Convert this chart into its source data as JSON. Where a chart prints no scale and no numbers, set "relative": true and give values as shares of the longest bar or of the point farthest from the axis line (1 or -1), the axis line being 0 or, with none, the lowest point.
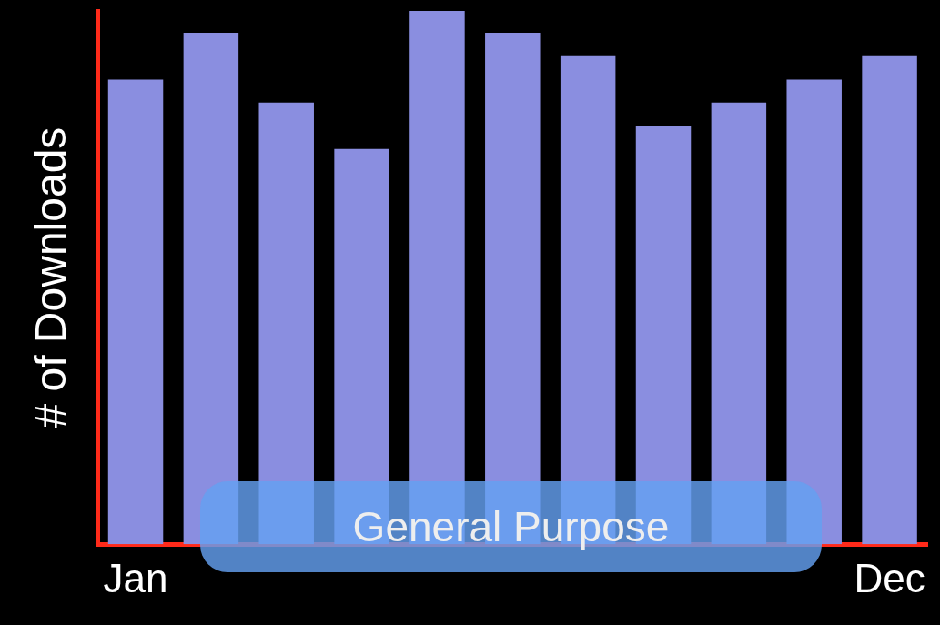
{
  "chart_data": {
    "type": "bar",
    "relative": true,
    "ylabel": "# of Downloads",
    "categories": [
      "Jan",
      null,
      null,
      null,
      null,
      null,
      null,
      null,
      null,
      null,
      "Dec"
    ],
    "values": [
      0.871,
      0.959,
      0.828,
      0.741,
      1,
      0.959,
      0.915,
      0.784,
      0.828,
      0.871,
      0.915
    ],
    "color": "#8a8ee0",
    "annotations": [
      "General Purpose"
    ],
    "grid": false,
    "legend": false
  }
}
